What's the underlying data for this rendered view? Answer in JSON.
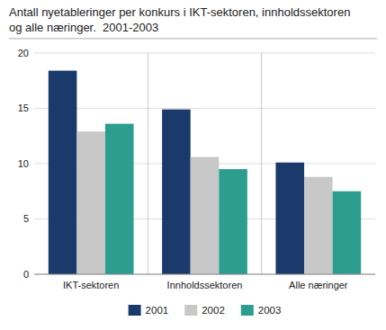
{
  "chart_data": {
    "type": "bar",
    "title": "Antall nyetableringer per konkurs i IKT-sektoren, innholdssektoren\nog alle næringer.  2001-2003",
    "categories": [
      "IKT-sektoren",
      "Innholdssektoren",
      "Alle næringer"
    ],
    "series": [
      {
        "name": "2001",
        "color": "#1a3a6b",
        "values": [
          18.4,
          14.9,
          10.1
        ]
      },
      {
        "name": "2002",
        "color": "#c8c8c8",
        "values": [
          12.9,
          10.6,
          8.8
        ]
      },
      {
        "name": "2003",
        "color": "#2d9d8f",
        "values": [
          13.6,
          9.5,
          7.5
        ]
      }
    ],
    "ylim": [
      0,
      20
    ],
    "yticks": [
      0,
      5,
      10,
      15,
      20
    ],
    "grid": true,
    "legend": "bottom"
  }
}
